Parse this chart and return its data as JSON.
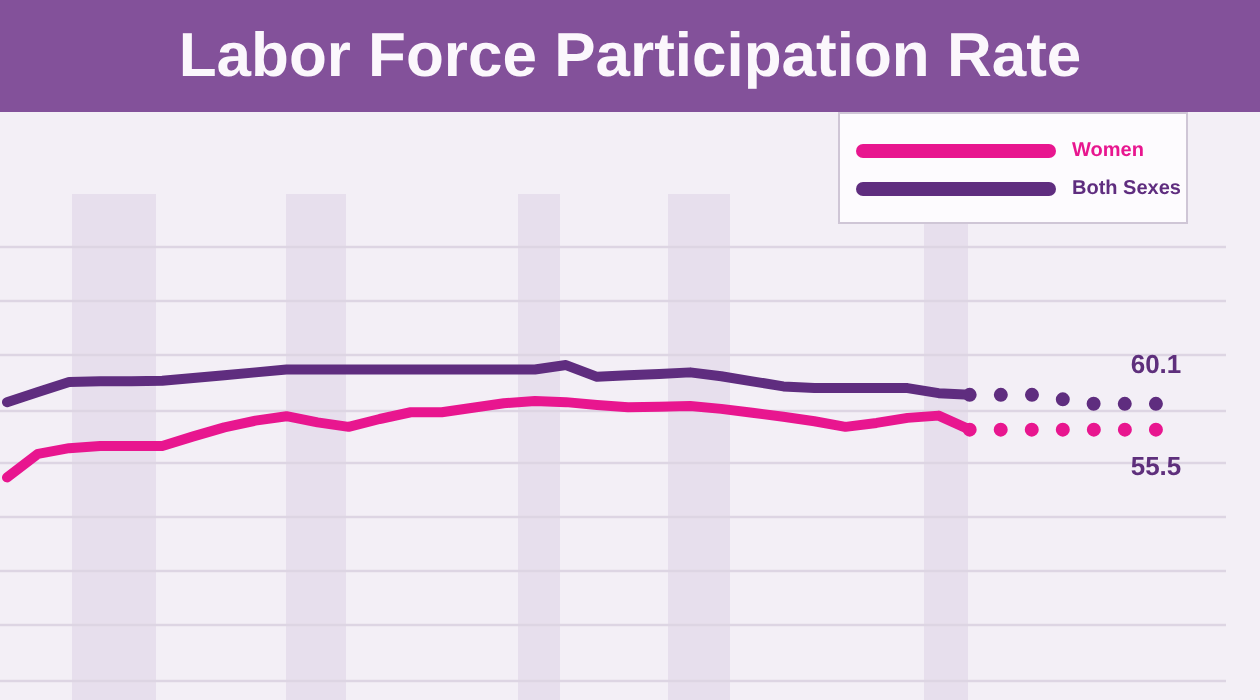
{
  "chart_data": {
    "type": "line",
    "title": "Labor Force Participation Rate",
    "categories": [
      null,
      null,
      null,
      null,
      null,
      null,
      null,
      null,
      null,
      null,
      null,
      null,
      null,
      null,
      null,
      null,
      null,
      null,
      null,
      null,
      null,
      null,
      null,
      null,
      null,
      null,
      null,
      null,
      null,
      null,
      null,
      null,
      null,
      null,
      null,
      null,
      null,
      null
    ],
    "series": [
      {
        "name": "Women",
        "color": "#e8168f",
        "values": [
          47.0,
          51.2,
          52.2,
          52.6,
          52.6,
          52.6,
          54.3,
          55.9,
          57.1,
          57.9,
          56.8,
          56.0,
          57.4,
          58.6,
          58.6,
          59.4,
          60.2,
          60.6,
          60.4,
          59.9,
          59.5,
          59.6,
          59.7,
          59.2,
          58.5,
          57.8,
          57.0,
          56.0,
          56.7,
          57.6,
          58.0,
          55.5,
          null,
          null,
          null,
          null,
          null,
          null
        ]
      },
      {
        "name": "Both Sexes",
        "color": "#5f2d7f",
        "values": [
          60.4,
          62.2,
          64.0,
          64.1,
          64.1,
          64.2,
          64.7,
          65.2,
          65.7,
          66.2,
          66.2,
          66.2,
          66.2,
          66.2,
          66.2,
          66.2,
          66.2,
          66.2,
          67.0,
          64.9,
          65.2,
          65.4,
          65.7,
          65.0,
          64.1,
          63.2,
          62.9,
          62.9,
          62.9,
          62.9,
          62.0,
          61.7,
          null,
          null,
          null,
          null,
          null,
          null
        ]
      },
      {
        "type": "line",
        "line_style": "dotted",
        "color": "#e8168f",
        "values": [
          null,
          null,
          null,
          null,
          null,
          null,
          null,
          null,
          null,
          null,
          null,
          null,
          null,
          null,
          null,
          null,
          null,
          null,
          null,
          null,
          null,
          null,
          null,
          null,
          null,
          null,
          null,
          null,
          null,
          null,
          null,
          55.5,
          55.5,
          55.5,
          55.5,
          55.5,
          55.5,
          55.5
        ],
        "value_labels": [
          null,
          null,
          null,
          null,
          null,
          null,
          null,
          null,
          null,
          null,
          null,
          null,
          null,
          null,
          null,
          null,
          null,
          null,
          null,
          null,
          null,
          null,
          null,
          null,
          null,
          null,
          null,
          null,
          null,
          null,
          null,
          null,
          null,
          null,
          null,
          null,
          null,
          "55.5"
        ]
      },
      {
        "type": "line",
        "line_style": "dotted",
        "color": "#5f2d7f",
        "values": [
          null,
          null,
          null,
          null,
          null,
          null,
          null,
          null,
          null,
          null,
          null,
          null,
          null,
          null,
          null,
          null,
          null,
          null,
          null,
          null,
          null,
          null,
          null,
          null,
          null,
          null,
          null,
          null,
          null,
          null,
          null,
          61.7,
          61.7,
          61.7,
          60.9,
          60.1,
          60.1,
          60.1
        ],
        "value_labels": [
          null,
          null,
          null,
          null,
          null,
          null,
          null,
          null,
          null,
          null,
          null,
          null,
          null,
          null,
          null,
          null,
          null,
          null,
          null,
          null,
          null,
          null,
          null,
          null,
          null,
          null,
          null,
          null,
          null,
          null,
          null,
          null,
          null,
          null,
          null,
          null,
          null,
          "60.1"
        ]
      }
    ],
    "ylim": [
      11.0,
      88.2
    ],
    "yticks": [
      {
        "value": 11.0,
        "label": null
      },
      {
        "value": 20.9,
        "label": null
      },
      {
        "value": 30.5,
        "label": null
      },
      {
        "value": 40.0,
        "label": null
      },
      {
        "value": 49.6,
        "label": null
      },
      {
        "value": 59.1,
        "label": null
      },
      {
        "value": 69.1,
        "label": null
      },
      {
        "value": 78.6,
        "label": null
      },
      {
        "value": 88.2,
        "label": null
      }
    ],
    "grid": "y",
    "legend": "top right"
  }
}
